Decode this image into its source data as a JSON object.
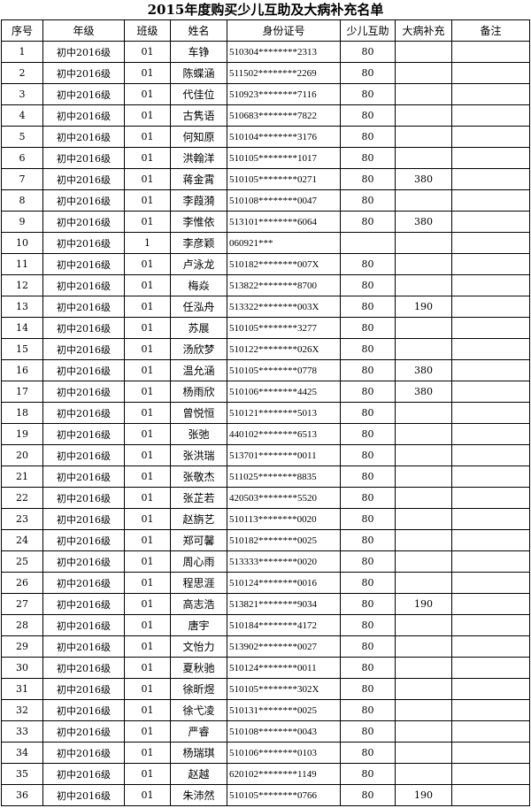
{
  "title": "2015年度购买少儿互助及大病补充名单",
  "headers": [
    "序号",
    "年级",
    "班级",
    "姓名",
    "身份证号",
    "少儿互助",
    "大病补充",
    "备注"
  ],
  "rows": [
    [
      "1",
      "初中2016级",
      "01",
      "车铮",
      "510304********2313",
      "80",
      "",
      ""
    ],
    [
      "2",
      "初中2016级",
      "01",
      "陈蝶涵",
      "511502********2269",
      "80",
      "",
      ""
    ],
    [
      "3",
      "初中2016级",
      "01",
      "代佳位",
      "510923********7116",
      "80",
      "",
      ""
    ],
    [
      "4",
      "初中2016级",
      "01",
      "古隽语",
      "510683********7822",
      "80",
      "",
      ""
    ],
    [
      "5",
      "初中2016级",
      "01",
      "何知原",
      "510104********3176",
      "80",
      "",
      ""
    ],
    [
      "6",
      "初中2016级",
      "01",
      "洪翰洋",
      "510105********1017",
      "80",
      "",
      ""
    ],
    [
      "7",
      "初中2016级",
      "01",
      "蒋金霄",
      "510105********0271",
      "80",
      "380",
      ""
    ],
    [
      "8",
      "初中2016级",
      "01",
      "李葭漪",
      "510108********0047",
      "80",
      "",
      ""
    ],
    [
      "9",
      "初中2016级",
      "01",
      "李惟依",
      "513101********6064",
      "80",
      "380",
      ""
    ],
    [
      "10",
      "初中2016级",
      "1",
      "李彦颖",
      "060921***",
      "",
      "",
      ""
    ],
    [
      "11",
      "初中2016级",
      "01",
      "卢泳龙",
      "510182********007X",
      "80",
      "",
      ""
    ],
    [
      "12",
      "初中2016级",
      "01",
      "梅焱",
      "513822********8700",
      "80",
      "",
      ""
    ],
    [
      "13",
      "初中2016级",
      "01",
      "任泓舟",
      "513322********003X",
      "80",
      "190",
      ""
    ],
    [
      "14",
      "初中2016级",
      "01",
      "苏展",
      "510105********3277",
      "80",
      "",
      ""
    ],
    [
      "15",
      "初中2016级",
      "01",
      "汤欣梦",
      "510122********026X",
      "80",
      "",
      ""
    ],
    [
      "16",
      "初中2016级",
      "01",
      "温允涵",
      "510105********0778",
      "80",
      "380",
      ""
    ],
    [
      "17",
      "初中2016级",
      "01",
      "杨雨欣",
      "510106********4425",
      "80",
      "380",
      ""
    ],
    [
      "18",
      "初中2016级",
      "01",
      "曾悦恒",
      "510121********5013",
      "80",
      "",
      ""
    ],
    [
      "19",
      "初中2016级",
      "01",
      "张弛",
      "440102********6513",
      "80",
      "",
      ""
    ],
    [
      "20",
      "初中2016级",
      "01",
      "张洪瑞",
      "513701********0011",
      "80",
      "",
      ""
    ],
    [
      "21",
      "初中2016级",
      "01",
      "张敬杰",
      "511025********8835",
      "80",
      "",
      ""
    ],
    [
      "22",
      "初中2016级",
      "01",
      "张芷若",
      "420503********5520",
      "80",
      "",
      ""
    ],
    [
      "23",
      "初中2016级",
      "01",
      "赵旃艺",
      "510113********0020",
      "80",
      "",
      ""
    ],
    [
      "24",
      "初中2016级",
      "01",
      "郑可馨",
      "510182********0025",
      "80",
      "",
      ""
    ],
    [
      "25",
      "初中2016级",
      "01",
      "周心雨",
      "513333********0020",
      "80",
      "",
      ""
    ],
    [
      "26",
      "初中2016级",
      "01",
      "程思涯",
      "510124********0016",
      "80",
      "",
      ""
    ],
    [
      "27",
      "初中2016级",
      "01",
      "高志浩",
      "513821********9034",
      "80",
      "190",
      ""
    ],
    [
      "28",
      "初中2016级",
      "01",
      "唐宇",
      "510184********4172",
      "80",
      "",
      ""
    ],
    [
      "29",
      "初中2016级",
      "01",
      "文怡力",
      "513902********0027",
      "80",
      "",
      ""
    ],
    [
      "30",
      "初中2016级",
      "01",
      "夏秋驰",
      "510124********0011",
      "80",
      "",
      ""
    ],
    [
      "31",
      "初中2016级",
      "01",
      "徐昕煜",
      "510105********302X",
      "80",
      "",
      ""
    ],
    [
      "32",
      "初中2016级",
      "01",
      "徐弋凌",
      "510131********0025",
      "80",
      "",
      ""
    ],
    [
      "33",
      "初中2016级",
      "01",
      "严睿",
      "510108********0043",
      "80",
      "",
      ""
    ],
    [
      "34",
      "初中2016级",
      "01",
      "杨瑞琪",
      "510106********0103",
      "80",
      "",
      ""
    ],
    [
      "35",
      "初中2016级",
      "01",
      "赵越",
      "620102********1149",
      "80",
      "",
      ""
    ],
    [
      "36",
      "初中2016级",
      "01",
      "朱沛然",
      "510105********0766",
      "80",
      "190",
      ""
    ]
  ]
}
